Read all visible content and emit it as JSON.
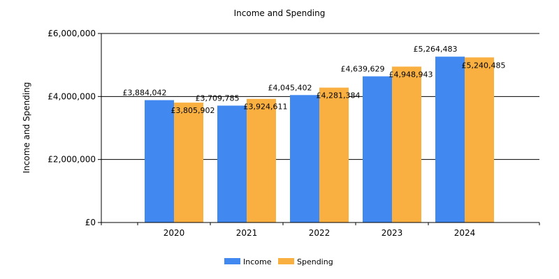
{
  "chart_data": {
    "type": "bar",
    "title": "Income and Spending",
    "xlabel": "",
    "ylabel": "Income and Spending",
    "categories": [
      "2020",
      "2021",
      "2022",
      "2023",
      "2024"
    ],
    "series": [
      {
        "name": "Income",
        "color": "#4189F0",
        "values": [
          3884042,
          3709785,
          4045402,
          4639629,
          5264483
        ],
        "labels": [
          "£3,884,042",
          "£3,709,785",
          "£4,045,402",
          "£4,639,629",
          "£5,264,483"
        ]
      },
      {
        "name": "Spending",
        "color": "#F9B040",
        "values": [
          3805902,
          3924611,
          4281384,
          4948943,
          5240485
        ],
        "labels": [
          "£3,805,902",
          "£3,924,611",
          "£4,281,384",
          "£4,948,943",
          "£5,240,485"
        ]
      }
    ],
    "ylim": [
      0,
      6000000
    ],
    "yticks": [
      0,
      2000000,
      4000000,
      6000000
    ],
    "ytick_labels": [
      "£0",
      "£2,000,000",
      "£4,000,000",
      "£6,000,000"
    ],
    "grid": true,
    "legend_position": "bottom-center"
  }
}
